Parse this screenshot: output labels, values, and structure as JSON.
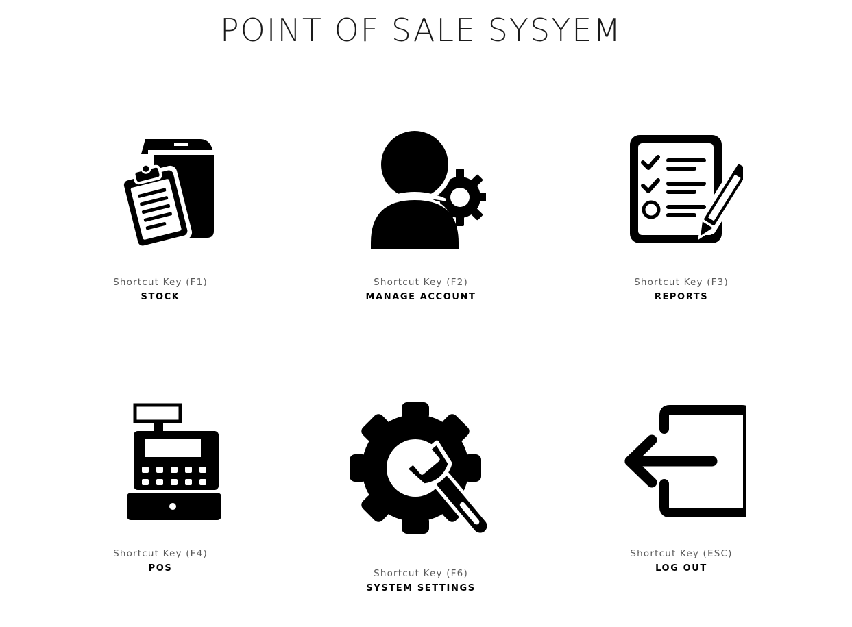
{
  "title": "POINT OF SALE SYSYEM",
  "tiles": [
    {
      "shortcut": "Shortcut Key (F1)",
      "label": "STOCK",
      "icon": "stock-box-clipboard-icon"
    },
    {
      "shortcut": "Shortcut Key (F2)",
      "label": "MANAGE ACCOUNT",
      "icon": "user-gear-icon"
    },
    {
      "shortcut": "Shortcut Key (F3)",
      "label": "REPORTS",
      "icon": "checklist-pencil-icon"
    },
    {
      "shortcut": "Shortcut Key (F4)",
      "label": "POS",
      "icon": "cash-register-icon"
    },
    {
      "shortcut": "Shortcut Key (F6)",
      "label": "SYSTEM SETTINGS",
      "icon": "gear-wrench-icon"
    },
    {
      "shortcut": "Shortcut Key (ESC)",
      "label": "LOG OUT",
      "icon": "logout-arrow-icon"
    }
  ]
}
